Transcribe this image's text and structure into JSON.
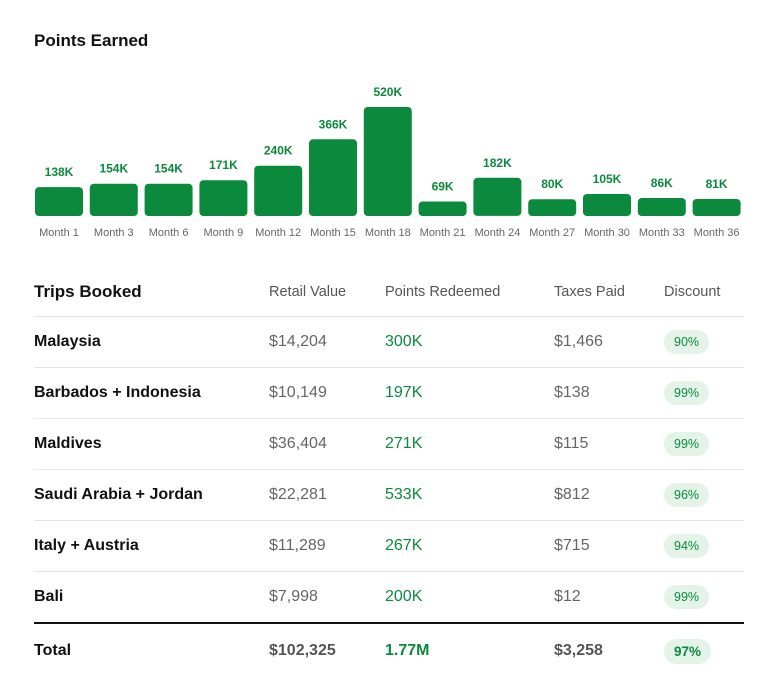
{
  "chart_data": {
    "type": "bar",
    "title": "Points Earned",
    "categories": [
      "Month 1",
      "Month 3",
      "Month 6",
      "Month 9",
      "Month 12",
      "Month 15",
      "Month 18",
      "Month 21",
      "Month 24",
      "Month 27",
      "Month 30",
      "Month 33",
      "Month 36"
    ],
    "values": [
      138,
      154,
      154,
      171,
      240,
      366,
      520,
      69,
      182,
      80,
      105,
      86,
      81
    ],
    "value_labels": [
      "138K",
      "154K",
      "154K",
      "171K",
      "240K",
      "366K",
      "520K",
      "69K",
      "182K",
      "80K",
      "105K",
      "86K",
      "81K"
    ],
    "unit": "K",
    "ylim": [
      0,
      520
    ],
    "grid": false,
    "bar_color": "#0b8a3e"
  },
  "table": {
    "title": "Trips Booked",
    "columns": [
      "Retail Value",
      "Points Redeemed",
      "Taxes Paid",
      "Discount"
    ],
    "rows": [
      {
        "destination": "Malaysia",
        "retail": "$14,204",
        "points": "300K",
        "taxes": "$1,466",
        "discount": "90%"
      },
      {
        "destination": "Barbados + Indonesia",
        "retail": "$10,149",
        "points": "197K",
        "taxes": "$138",
        "discount": "99%"
      },
      {
        "destination": "Maldives",
        "retail": "$36,404",
        "points": "271K",
        "taxes": "$115",
        "discount": "99%"
      },
      {
        "destination": "Saudi Arabia + Jordan",
        "retail": "$22,281",
        "points": "533K",
        "taxes": "$812",
        "discount": "96%"
      },
      {
        "destination": "Italy + Austria",
        "retail": "$11,289",
        "points": "267K",
        "taxes": "$715",
        "discount": "94%"
      },
      {
        "destination": "Bali",
        "retail": "$7,998",
        "points": "200K",
        "taxes": "$12",
        "discount": "99%"
      }
    ],
    "total": {
      "label": "Total",
      "retail": "$102,325",
      "points": "1.77M",
      "taxes": "$3,258",
      "discount": "97%"
    }
  },
  "colors": {
    "accent": "#0b8a3e",
    "badge_bg": "#e3f3e7"
  }
}
